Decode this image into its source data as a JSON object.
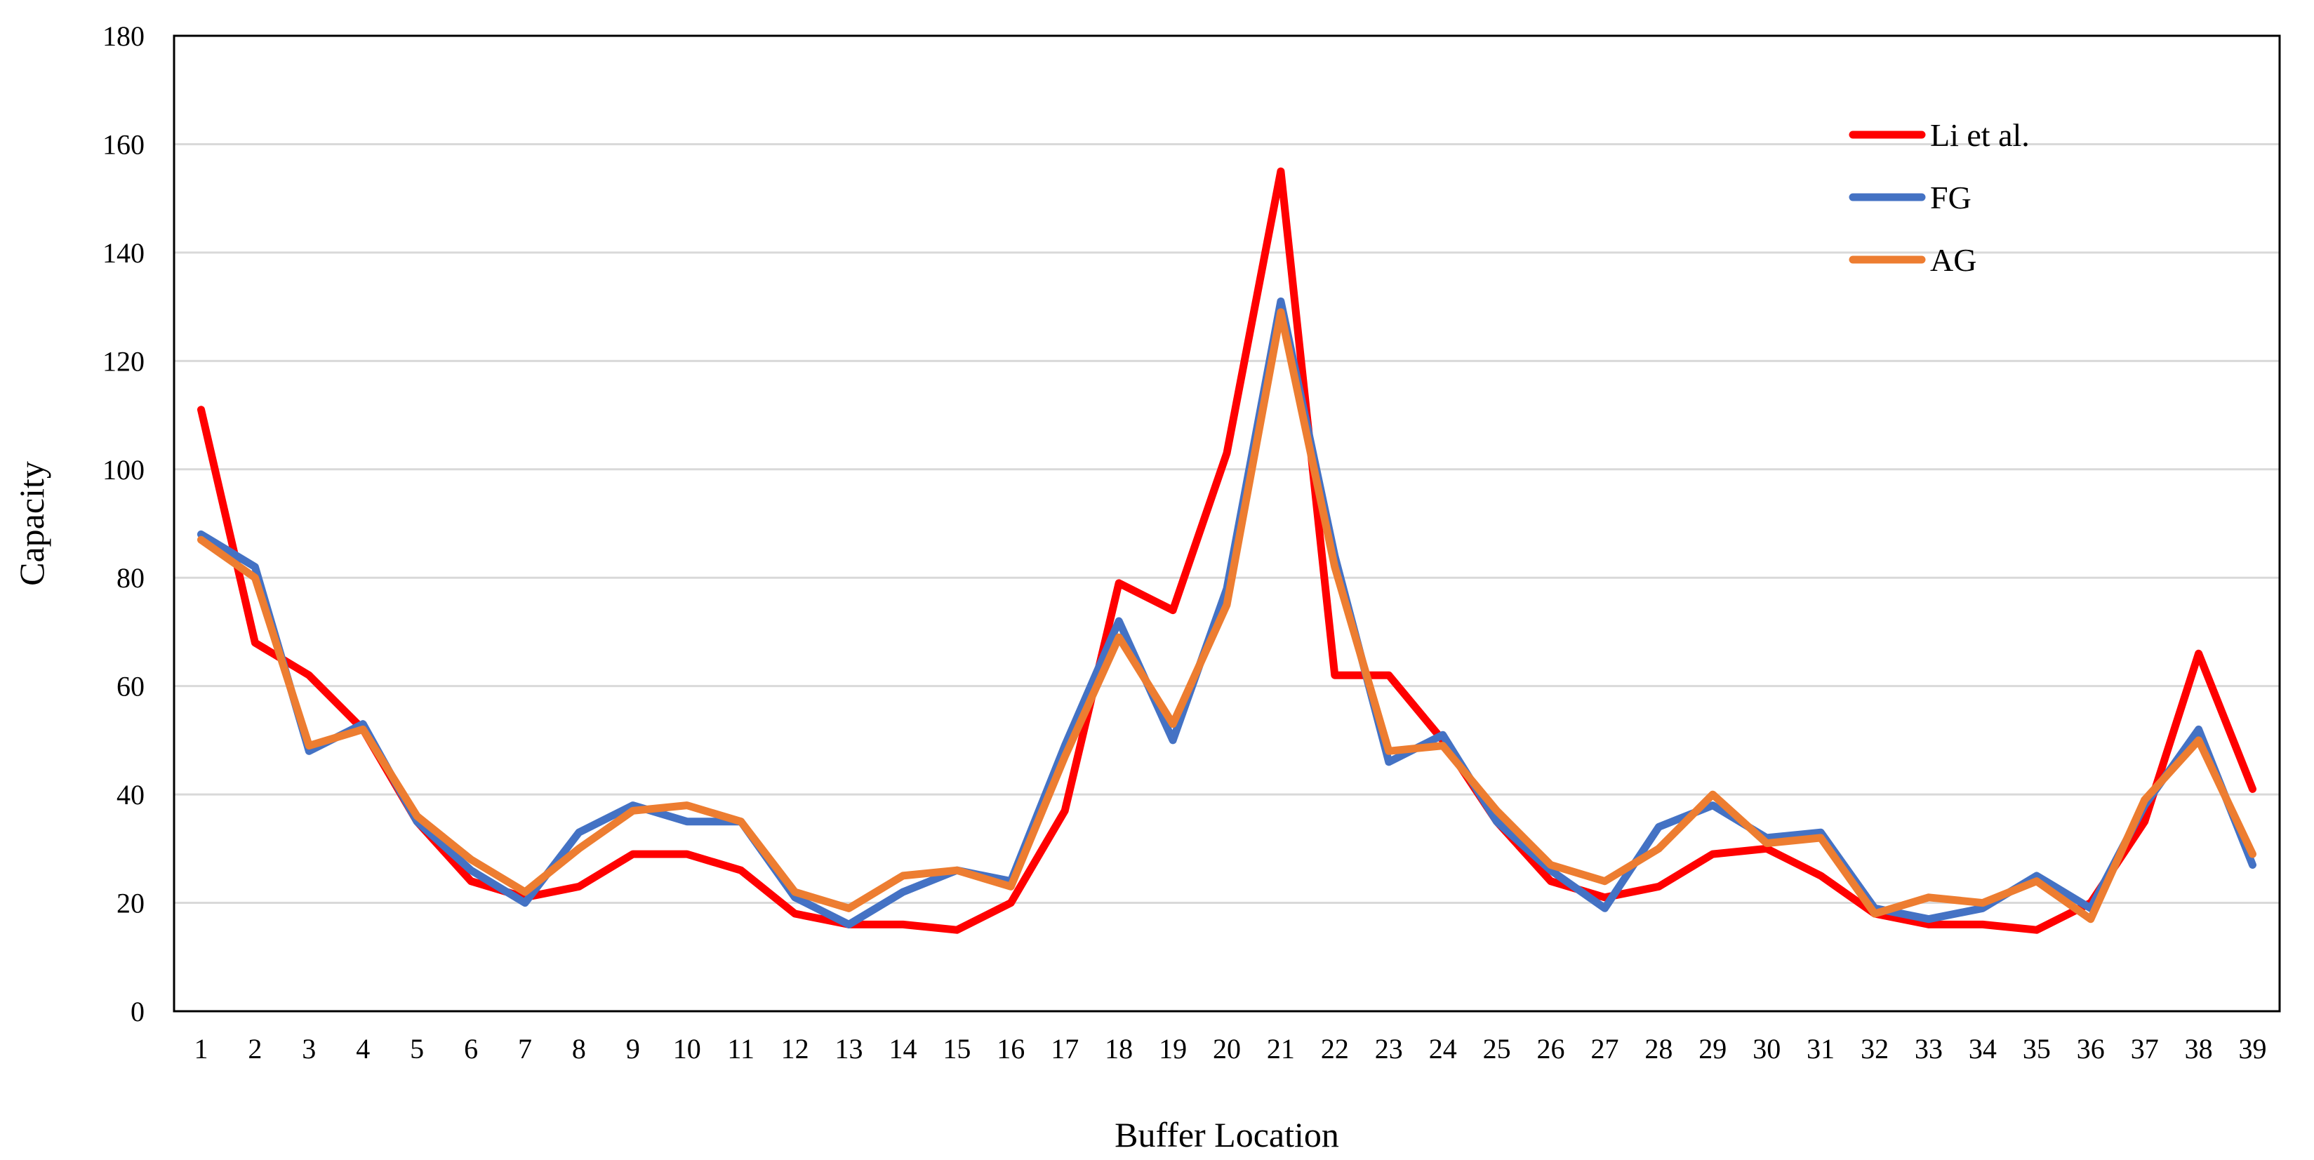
{
  "chart_data": {
    "type": "line",
    "xlabel": "Buffer Location",
    "ylabel": "Capacity",
    "ylim": [
      0,
      180
    ],
    "yticks": [
      0,
      20,
      40,
      60,
      80,
      100,
      120,
      140,
      160,
      180
    ],
    "categories": [
      "1",
      "2",
      "3",
      "4",
      "5",
      "6",
      "7",
      "8",
      "9",
      "10",
      "11",
      "12",
      "13",
      "14",
      "15",
      "16",
      "17",
      "18",
      "19",
      "20",
      "21",
      "22",
      "23",
      "24",
      "25",
      "26",
      "27",
      "28",
      "29",
      "30",
      "31",
      "32",
      "33",
      "34",
      "35",
      "36",
      "37",
      "38",
      "39"
    ],
    "grid": true,
    "legend_position": "top-right",
    "series": [
      {
        "name": "Li et al.",
        "color": "#ff0000",
        "values": [
          111,
          68,
          62,
          52,
          35,
          24,
          21,
          23,
          29,
          29,
          26,
          18,
          16,
          16,
          15,
          20,
          37,
          79,
          74,
          103,
          155,
          62,
          62,
          50,
          35,
          24,
          21,
          23,
          29,
          30,
          25,
          18,
          16,
          16,
          15,
          20,
          35,
          66,
          41
        ]
      },
      {
        "name": "FG",
        "color": "#4472c4",
        "values": [
          88,
          82,
          48,
          53,
          35,
          26,
          20,
          33,
          38,
          35,
          35,
          21,
          16,
          22,
          26,
          24,
          49,
          72,
          50,
          78,
          131,
          84,
          46,
          51,
          35,
          26,
          19,
          34,
          38,
          32,
          33,
          19,
          17,
          19,
          25,
          19,
          38,
          52,
          27
        ]
      },
      {
        "name": "AG",
        "color": "#ed7d31",
        "values": [
          87,
          80,
          49,
          52,
          36,
          28,
          22,
          30,
          37,
          38,
          35,
          22,
          19,
          25,
          26,
          23,
          47,
          69,
          53,
          75,
          129,
          82,
          48,
          49,
          37,
          27,
          24,
          30,
          40,
          31,
          32,
          18,
          21,
          20,
          24,
          17,
          39,
          50,
          29
        ]
      }
    ]
  }
}
